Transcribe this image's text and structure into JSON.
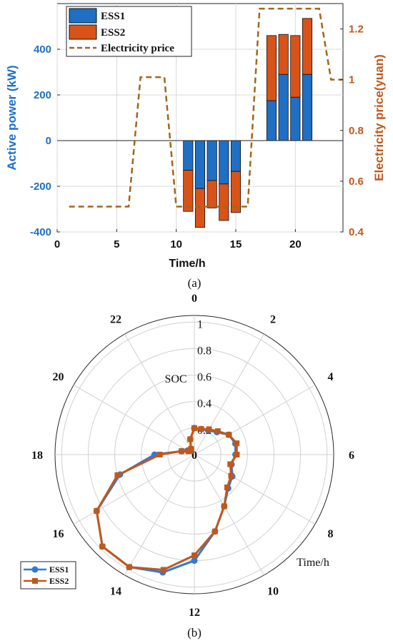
{
  "chart_data": [
    {
      "type": "bar",
      "panel_label": "(a)",
      "xlabel": "Time/h",
      "ylabel": "Active power (kW)",
      "y2label": "Electricity price(yuan)",
      "xlim": [
        0,
        24
      ],
      "ylim": [
        -400,
        600
      ],
      "y2lim": [
        0.4,
        1.3
      ],
      "x_ticks": [
        "0",
        "5",
        "10",
        "15",
        "20"
      ],
      "y_ticks": [
        "-400",
        "-200",
        "0",
        "200",
        "400"
      ],
      "y2_ticks": [
        "0.4",
        "0.6",
        "0.8",
        "1",
        "1.2"
      ],
      "grid": true,
      "legend_position": "top-left",
      "series": [
        {
          "name": "ESS1",
          "color": "#1f6fc5",
          "values_by_hour": [
            [
              11,
              -130
            ],
            [
              12,
              -210
            ],
            [
              13,
              -175
            ],
            [
              14,
              -190
            ],
            [
              15,
              -135
            ],
            [
              18,
              175
            ],
            [
              19,
              290
            ],
            [
              20,
              190
            ],
            [
              21,
              290
            ]
          ]
        },
        {
          "name": "ESS2",
          "color": "#d95319",
          "values_by_hour": [
            [
              11,
              -180
            ],
            [
              12,
              -170
            ],
            [
              13,
              -120
            ],
            [
              14,
              -160
            ],
            [
              15,
              -180
            ],
            [
              18,
              285
            ],
            [
              19,
              175
            ],
            [
              20,
              270
            ],
            [
              21,
              245
            ]
          ]
        }
      ],
      "price_series": {
        "name": "Electricity price",
        "color": "#a0661b",
        "points": [
          [
            1,
            0.5
          ],
          [
            6,
            0.5
          ],
          [
            7,
            1.01
          ],
          [
            9,
            1.01
          ],
          [
            10,
            0.5
          ],
          [
            16,
            0.5
          ],
          [
            17,
            1.28
          ],
          [
            22,
            1.28
          ],
          [
            23,
            1.0
          ],
          [
            24,
            1.0
          ]
        ]
      }
    },
    {
      "type": "line",
      "subtype": "polar",
      "panel_label": "(b)",
      "radial_label": "SOC",
      "angular_label": "Time/h",
      "radial_ticks": [
        "0.2",
        "0.4",
        "0.6",
        "0.8",
        "1"
      ],
      "angle_ticks": [
        "0",
        "2",
        "4",
        "6",
        "8",
        "10",
        "12",
        "14",
        "16",
        "18",
        "20",
        "22"
      ],
      "legend_position": "bottom-left",
      "series": [
        {
          "name": "ESS1",
          "color": "#2e7bd6",
          "marker": "circle",
          "hours": [
            0,
            1,
            2,
            3,
            4,
            5,
            6,
            7,
            8,
            9,
            10,
            11,
            12,
            13,
            14,
            15,
            16,
            17,
            18,
            19,
            20,
            21,
            22,
            23,
            24
          ],
          "values": [
            0.2,
            0.2,
            0.21,
            0.24,
            0.3,
            0.32,
            0.31,
            0.29,
            0.33,
            0.36,
            0.45,
            0.6,
            0.8,
            0.92,
            0.98,
            0.98,
            0.85,
            0.58,
            0.3,
            0.1,
            0.06,
            0.05,
            0.05,
            0.12,
            0.2
          ]
        },
        {
          "name": "ESS2",
          "color": "#c0581c",
          "marker": "square",
          "hours": [
            0,
            1,
            2,
            3,
            4,
            5,
            6,
            7,
            8,
            9,
            10,
            11,
            12,
            13,
            14,
            15,
            16,
            17,
            18,
            19,
            20,
            21,
            22,
            23,
            24
          ],
          "values": [
            0.2,
            0.2,
            0.22,
            0.25,
            0.3,
            0.33,
            0.32,
            0.28,
            0.32,
            0.35,
            0.45,
            0.6,
            0.76,
            0.9,
            0.98,
            0.98,
            0.85,
            0.6,
            0.26,
            0.1,
            0.05,
            0.04,
            0.05,
            0.12,
            0.2
          ]
        }
      ]
    }
  ]
}
